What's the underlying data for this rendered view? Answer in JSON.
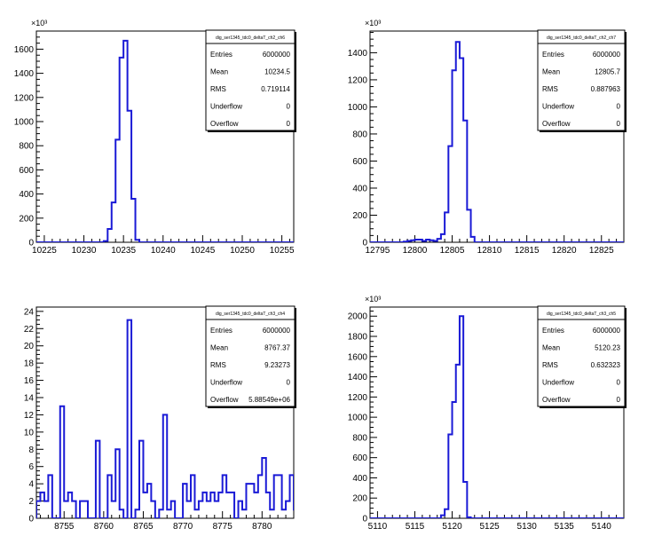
{
  "chart_data": [
    {
      "type": "histogram",
      "stats_title": "dig_ser1345_tdc0_deltaT_ch2_ch6",
      "stats": [
        {
          "label": "Entries",
          "value": "6000000"
        },
        {
          "label": "Mean",
          "value": "10234.5"
        },
        {
          "label": "RMS",
          "value": "0.719114"
        },
        {
          "label": "Underflow",
          "value": "0"
        },
        {
          "label": "Overflow",
          "value": "0"
        }
      ],
      "xlim": [
        10224,
        10256.5
      ],
      "ylim": [
        0,
        1750
      ],
      "x_ticks": [
        10225,
        10230,
        10235,
        10240,
        10245,
        10250,
        10255
      ],
      "y_ticks": [
        0,
        200,
        400,
        600,
        800,
        1000,
        1200,
        1400,
        1600
      ],
      "y_exponent": "×10³",
      "bin_width": 0.5,
      "bins": [
        [
          10232,
          0
        ],
        [
          10232.5,
          10
        ],
        [
          10233,
          110
        ],
        [
          10233.5,
          330
        ],
        [
          10234,
          850
        ],
        [
          10234.5,
          1530
        ],
        [
          10235,
          1670
        ],
        [
          10235.5,
          1090
        ],
        [
          10236,
          360
        ],
        [
          10236.5,
          20
        ],
        [
          10237,
          0
        ]
      ]
    },
    {
      "type": "histogram",
      "stats_title": "dig_ser1345_tdc0_deltaT_ch2_ch7",
      "stats": [
        {
          "label": "Entries",
          "value": "6000000"
        },
        {
          "label": "Mean",
          "value": "12805.7"
        },
        {
          "label": "RMS",
          "value": "0.887963"
        },
        {
          "label": "Underflow",
          "value": "0"
        },
        {
          "label": "Overflow",
          "value": "0"
        }
      ],
      "xlim": [
        12794,
        12828
      ],
      "ylim": [
        0,
        1560
      ],
      "x_ticks": [
        12795,
        12800,
        12805,
        12810,
        12815,
        12820,
        12825
      ],
      "y_ticks": [
        0,
        200,
        400,
        600,
        800,
        1000,
        1200,
        1400
      ],
      "y_exponent": "×10³",
      "bin_width": 0.5,
      "bins": [
        [
          12798,
          0
        ],
        [
          12798.5,
          5
        ],
        [
          12799,
          10
        ],
        [
          12799.5,
          15
        ],
        [
          12800,
          20
        ],
        [
          12800.5,
          20
        ],
        [
          12801,
          10
        ],
        [
          12801.5,
          20
        ],
        [
          12802,
          15
        ],
        [
          12802.5,
          10
        ],
        [
          12803,
          25
        ],
        [
          12803.5,
          60
        ],
        [
          12804,
          220
        ],
        [
          12804.5,
          710
        ],
        [
          12805,
          1270
        ],
        [
          12805.5,
          1480
        ],
        [
          12806,
          1360
        ],
        [
          12806.5,
          900
        ],
        [
          12807,
          240
        ],
        [
          12807.5,
          40
        ],
        [
          12808,
          0
        ]
      ]
    },
    {
      "type": "histogram",
      "stats_title": "dig_ser1345_tdc0_deltaT_ch3_ch4",
      "stats": [
        {
          "label": "Entries",
          "value": "6000000"
        },
        {
          "label": "Mean",
          "value": "8767.37"
        },
        {
          "label": "RMS",
          "value": "9.23273"
        },
        {
          "label": "Underflow",
          "value": "0"
        },
        {
          "label": "Overflow",
          "value": "5.88549e+06"
        }
      ],
      "xlim": [
        8751.5,
        8784
      ],
      "ylim": [
        0,
        24.5
      ],
      "x_ticks": [
        8755,
        8760,
        8765,
        8770,
        8775,
        8780
      ],
      "y_ticks": [
        0,
        2,
        4,
        6,
        8,
        10,
        12,
        14,
        16,
        18,
        20,
        22,
        24
      ],
      "y_exponent": "",
      "bin_width": 0.5,
      "bins": [
        [
          8751.5,
          2
        ],
        [
          8752,
          3
        ],
        [
          8752.5,
          2
        ],
        [
          8753,
          5
        ],
        [
          8753.5,
          0
        ],
        [
          8754,
          0
        ],
        [
          8754.5,
          13
        ],
        [
          8755,
          2
        ],
        [
          8755.5,
          3
        ],
        [
          8756,
          2
        ],
        [
          8756.5,
          0
        ],
        [
          8757,
          2
        ],
        [
          8757.5,
          2
        ],
        [
          8758,
          0
        ],
        [
          8758.5,
          0
        ],
        [
          8759,
          9
        ],
        [
          8759.5,
          0
        ],
        [
          8760,
          0
        ],
        [
          8760.5,
          5
        ],
        [
          8761,
          2
        ],
        [
          8761.5,
          8
        ],
        [
          8762,
          1
        ],
        [
          8762.5,
          0
        ],
        [
          8763,
          23
        ],
        [
          8763.5,
          0
        ],
        [
          8764,
          1
        ],
        [
          8764.5,
          9
        ],
        [
          8765,
          3
        ],
        [
          8765.5,
          4
        ],
        [
          8766,
          2
        ],
        [
          8766.5,
          0
        ],
        [
          8767,
          1
        ],
        [
          8767.5,
          12
        ],
        [
          8768,
          1
        ],
        [
          8768.5,
          2
        ],
        [
          8769,
          0
        ],
        [
          8769.5,
          0
        ],
        [
          8770,
          4
        ],
        [
          8770.5,
          2
        ],
        [
          8771,
          5
        ],
        [
          8771.5,
          1
        ],
        [
          8772,
          2
        ],
        [
          8772.5,
          3
        ],
        [
          8773,
          2
        ],
        [
          8773.5,
          3
        ],
        [
          8774,
          2
        ],
        [
          8774.5,
          3
        ],
        [
          8775,
          5
        ],
        [
          8775.5,
          3
        ],
        [
          8776,
          3
        ],
        [
          8776.5,
          0
        ],
        [
          8777,
          2
        ],
        [
          8777.5,
          1
        ],
        [
          8778,
          4
        ],
        [
          8778.5,
          4
        ],
        [
          8779,
          3
        ],
        [
          8779.5,
          5
        ],
        [
          8780,
          7
        ],
        [
          8780.5,
          3
        ],
        [
          8781,
          1
        ],
        [
          8781.5,
          5
        ],
        [
          8782,
          5
        ],
        [
          8782.5,
          1
        ],
        [
          8783,
          2
        ],
        [
          8783.5,
          5
        ],
        [
          8784,
          1
        ],
        [
          8784.5,
          4
        ],
        [
          8785,
          1
        ]
      ]
    },
    {
      "type": "histogram",
      "stats_title": "dig_ser1345_tdc0_deltaT_ch3_ch5",
      "stats": [
        {
          "label": "Entries",
          "value": "6000000"
        },
        {
          "label": "Mean",
          "value": "5120.23"
        },
        {
          "label": "RMS",
          "value": "0.632323"
        },
        {
          "label": "Underflow",
          "value": "0"
        },
        {
          "label": "Overflow",
          "value": "0"
        }
      ],
      "xlim": [
        5109,
        5143
      ],
      "ylim": [
        0,
        2090
      ],
      "x_ticks": [
        5110,
        5115,
        5120,
        5125,
        5130,
        5135,
        5140
      ],
      "y_ticks": [
        0,
        200,
        400,
        600,
        800,
        1000,
        1200,
        1400,
        1600,
        1800,
        2000
      ],
      "y_exponent": "×10³",
      "bin_width": 0.5,
      "bins": [
        [
          5118,
          0
        ],
        [
          5118.5,
          30
        ],
        [
          5119,
          90
        ],
        [
          5119.5,
          830
        ],
        [
          5120,
          1150
        ],
        [
          5120.5,
          1520
        ],
        [
          5121,
          2000
        ],
        [
          5121.5,
          360
        ],
        [
          5122,
          10
        ],
        [
          5122.5,
          0
        ]
      ]
    }
  ]
}
